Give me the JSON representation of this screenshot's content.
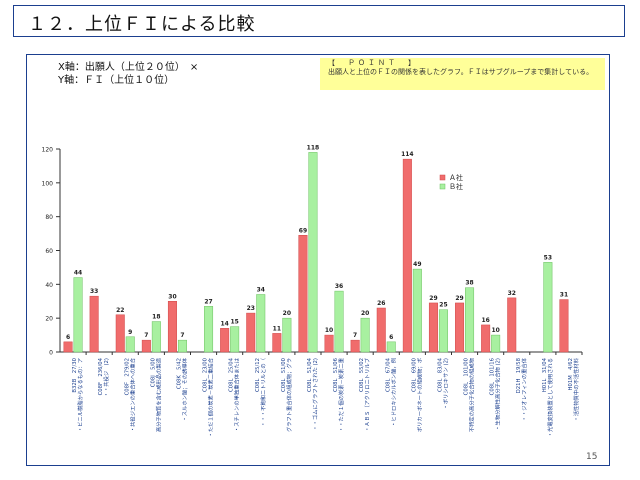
{
  "title": "１２．上位ＦＩによる比較",
  "axis_note": {
    "x": "X軸：出願人（上位２０位）　×",
    "y": "Y軸：ＦＩ（上位１０位）"
  },
  "point": {
    "heading": "【　ＰＯＩＮＴ　】",
    "body": "出願人と上位のＦＩの関係を表したグラフ。ＦＩはサブグループまで集計している。"
  },
  "page_number": "15",
  "colors": {
    "a": "#f06c6c",
    "b": "#a8f0a0",
    "frame": "#1b3f8f"
  },
  "chart_data": {
    "type": "bar",
    "ylim": [
      0,
      120
    ],
    "yticks": [
      0,
      20,
      40,
      60,
      80,
      100,
      120
    ],
    "legend": {
      "placement": "right",
      "entries": [
        "Ａ社",
        "Ｂ社"
      ]
    },
    "categories": [
      {
        "code": "B32B　27/30",
        "desc": "・ビニル樹脂からなるもの：ア"
      },
      {
        "code": "C08F　236/04",
        "desc": "・・共役ジ　(2)"
      },
      {
        "code": "C08F　279/02",
        "desc": "・共役ジエンの重合体への重合"
      },
      {
        "code": "C08J　5/00",
        "desc": "高分子物質を含む成形品の製造"
      },
      {
        "code": "C08K　5/42",
        "desc": "・スルホン酸；その誘導体"
      },
      {
        "code": "C08L　23/00",
        "desc": "・ただ１個の炭素－炭素二重結合"
      },
      {
        "code": "C08L　25/04",
        "desc": "・スチレンの単独重合体または"
      },
      {
        "code": "C08L　25/12",
        "desc": "・・・不飽和ニトリルとの（"
      },
      {
        "code": "C08L　51/00",
        "desc": "グラフト重合体の組成物；グラ"
      },
      {
        "code": "C08L　51/04",
        "desc": "・・ゴムにグラフトされた (2)"
      },
      {
        "code": "C08L　51/06",
        "desc": "・・ただ１個の炭素－炭素二重"
      },
      {
        "code": "C08L　55/02",
        "desc": "・ＡＢＳ〔アクリロニトリルブ"
      },
      {
        "code": "C08L　67/04",
        "desc": "・ヒドロキシカルボン酸，例"
      },
      {
        "code": "C08L　69/00",
        "desc": "ポリカーボネートの組成物；ポ"
      },
      {
        "code": "C08L　83/04",
        "desc": "・ポリシロキサン (2)"
      },
      {
        "code": "C08L　101/00",
        "desc": "不特定の高分子化合物の組成物"
      },
      {
        "code": "C08L　101/16",
        "desc": "・生物分解性高分子化合物 (2)"
      },
      {
        "code": "D21H　19/58",
        "desc": "・・ジオレフィンの重合体"
      },
      {
        "code": "H01L　31/04",
        "desc": "・光電変換装置として使用される"
      },
      {
        "code": "H01M　4/62",
        "desc": "・活性物質中の不活性材料"
      }
    ],
    "series": [
      {
        "name": "Ａ社",
        "values": [
          6,
          33,
          22,
          7,
          30,
          null,
          14,
          23,
          11,
          69,
          10,
          7,
          26,
          114,
          29,
          29,
          16,
          32,
          null,
          31
        ]
      },
      {
        "name": "Ｂ社",
        "values": [
          44,
          null,
          9,
          18,
          7,
          27,
          15,
          34,
          20,
          118,
          36,
          20,
          6,
          49,
          25,
          38,
          10,
          null,
          53,
          null
        ]
      }
    ]
  }
}
